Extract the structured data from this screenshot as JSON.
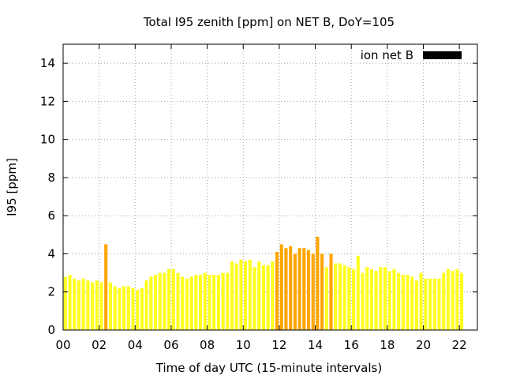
{
  "chart_data": {
    "type": "bar",
    "title": "Total I95 zenith [ppm] on NET B, DoY=105",
    "xlabel": "Time of day UTC (15-minute intervals)",
    "ylabel": "I95 [ppm]",
    "xlim": [
      0,
      23
    ],
    "ylim": [
      0,
      15
    ],
    "xticks": [
      "00",
      "02",
      "04",
      "06",
      "08",
      "10",
      "12",
      "14",
      "16",
      "18",
      "20",
      "22"
    ],
    "yticks": [
      "0",
      "2",
      "4",
      "6",
      "8",
      "10",
      "12",
      "14"
    ],
    "grid": true,
    "legend": {
      "position": "top-right",
      "label": "ion net B",
      "color": "#000000"
    },
    "interval_hours": 0.25,
    "colors": {
      "normal": "#ffff20",
      "elevated": "#ffa500"
    },
    "threshold": 4.0,
    "values": [
      2.8,
      2.9,
      2.7,
      2.6,
      2.7,
      2.6,
      2.5,
      2.6,
      2.5,
      4.5,
      2.5,
      2.3,
      2.2,
      2.3,
      2.3,
      2.2,
      2.1,
      2.2,
      2.6,
      2.8,
      2.9,
      3.0,
      3.0,
      3.2,
      3.2,
      3.0,
      2.8,
      2.7,
      2.8,
      2.9,
      2.9,
      3.0,
      2.9,
      2.9,
      2.9,
      3.0,
      3.0,
      3.6,
      3.5,
      3.7,
      3.6,
      3.7,
      3.3,
      3.6,
      3.4,
      3.4,
      3.6,
      4.1,
      4.5,
      4.3,
      4.4,
      4.0,
      4.3,
      4.3,
      4.2,
      4.0,
      4.9,
      4.0,
      3.3,
      4.0,
      3.5,
      3.5,
      3.4,
      3.3,
      3.2,
      3.9,
      3.0,
      3.3,
      3.2,
      3.1,
      3.3,
      3.3,
      3.1,
      3.2,
      3.0,
      2.9,
      2.9,
      2.8,
      2.6,
      3.0,
      2.7,
      2.7,
      2.7,
      2.7,
      3.0,
      3.2,
      3.1,
      3.2,
      3.0
    ]
  }
}
